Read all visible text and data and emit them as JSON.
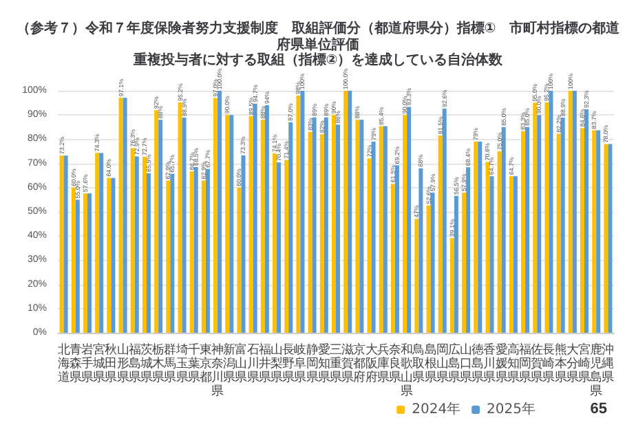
{
  "chart_data": {
    "type": "bar",
    "title": "（参考７）令和７年度保険者努力支援制度　取組評価分（都道府県分）指標①　市町村指標の都道府県単位評価",
    "subtitle": "重複投与者に対する取組（指標②）を達成している自治体数",
    "categories": [
      "北海道",
      "青森県",
      "岩手県",
      "宮城県",
      "秋田県",
      "山形県",
      "福島県",
      "茨城県",
      "栃木県",
      "群馬県",
      "埼玉県",
      "千葉県",
      "東京都",
      "神奈川県",
      "新潟県",
      "富山県",
      "石川県",
      "福井県",
      "山梨県",
      "長野県",
      "岐阜県",
      "静岡県",
      "愛知県",
      "三重県",
      "滋賀県",
      "京都府",
      "大阪府",
      "兵庫県",
      "奈良県",
      "和歌山県",
      "鳥取県",
      "島根県",
      "岡山県",
      "広島県",
      "山口県",
      "徳島県",
      "香川県",
      "愛媛県",
      "高知県",
      "福岡県",
      "佐賀県",
      "長崎県",
      "熊本県",
      "大分県",
      "宮崎県",
      "鹿児島県",
      "沖縄県"
    ],
    "series": [
      {
        "name": "2024年",
        "color": "#ffc000",
        "values": [
          73.2,
          60.0,
          57.6,
          74.3,
          64.0,
          97.1,
          76.3,
          72.7,
          92,
          62.9,
          95.2,
          66.7,
          62.9,
          97.0,
          90.0,
          60.0,
          89.5,
          88,
          74.1,
          71.4,
          98,
          83,
          82,
          90,
          100,
          88,
          72,
          85.4,
          61.5,
          90.0,
          47,
          52.6,
          81.5,
          39.1,
          57.9,
          79,
          70.6,
          75.0,
          64.7,
          83.3,
          95.0,
          95.2,
          82.2,
          100,
          84.6,
          83.7,
          78.0
        ],
        "value_labels": [
          "73.2%",
          "60.0%",
          "57.6%",
          "74.3%",
          "64.0%",
          "97.1%",
          "76.3%",
          "72.7%",
          "92%",
          "62.9%",
          "95.2%",
          "66.7%",
          "62.9%",
          "97.0%",
          "90.0%",
          "60.0%",
          "89.5%",
          "88%",
          "74.1%",
          "71.4%",
          "98%",
          "83%",
          "82%",
          "90%",
          "100.0%",
          "88%",
          "72%",
          "85.4%",
          "61.5%",
          "90.0%",
          "47%",
          "52.6%",
          "81.5%",
          "39.1%",
          "57.9%",
          "79%",
          "70.6%",
          "75.0%",
          "64.7%",
          "83.3%",
          "95.0%",
          "95.2%",
          "82.2%",
          "100%",
          "84.6%",
          "83.7%",
          "78.0%"
        ]
      },
      {
        "name": "2025年",
        "color": "#5b9bd5",
        "values": [
          73.2,
          55.0,
          57.6,
          74.3,
          64.0,
          97.1,
          72.9,
          65.9,
          88,
          65.7,
          88.9,
          68.5,
          67.7,
          100.0,
          90.0,
          73.3,
          94.7,
          94,
          70.4,
          87.0,
          100,
          89,
          89,
          86,
          100,
          88,
          79,
          85.4,
          69.2,
          93.3,
          68,
          57.9,
          92.6,
          56.5,
          68.4,
          79,
          64.7,
          85.0,
          64.7,
          85.0,
          90.0,
          100,
          88.9,
          100,
          92.3,
          83.7,
          78.0
        ],
        "value_labels": [
          null,
          "55.0%",
          null,
          null,
          null,
          null,
          "72.9%",
          "65.9%",
          "88%",
          "65.7%",
          "88.9%",
          "68.5%",
          "67.7%",
          "100.0%",
          null,
          "73.3%",
          "94.7%",
          "94%",
          "70.4%",
          "87.0%",
          "100%",
          "89%",
          "89%",
          "86%",
          null,
          null,
          "79%",
          null,
          "69.2%",
          "93.3%",
          "68%",
          "57.9%",
          "92.6%",
          "56.5%",
          "68.4%",
          null,
          "64.7%",
          "85.0%",
          null,
          "85.0%",
          "90.0%",
          "100%",
          "88.9%",
          null,
          "92.3%",
          null,
          null
        ]
      }
    ],
    "ylim": [
      0,
      100
    ],
    "yticks": [
      {
        "value": 0,
        "label": "0%"
      },
      {
        "value": 10,
        "label": "10%"
      },
      {
        "value": 20,
        "label": "20%"
      },
      {
        "value": 30,
        "label": "30%"
      },
      {
        "value": 40,
        "label": "40%"
      },
      {
        "value": 50,
        "label": "50%"
      },
      {
        "value": 60,
        "label": "60%"
      },
      {
        "value": 70,
        "label": "70%"
      },
      {
        "value": 80,
        "label": "80%"
      },
      {
        "value": 90,
        "label": "90%"
      },
      {
        "value": 100,
        "label": "100%"
      }
    ],
    "grid": "y",
    "legend": "bottom right",
    "annotations": [
      "65"
    ]
  }
}
